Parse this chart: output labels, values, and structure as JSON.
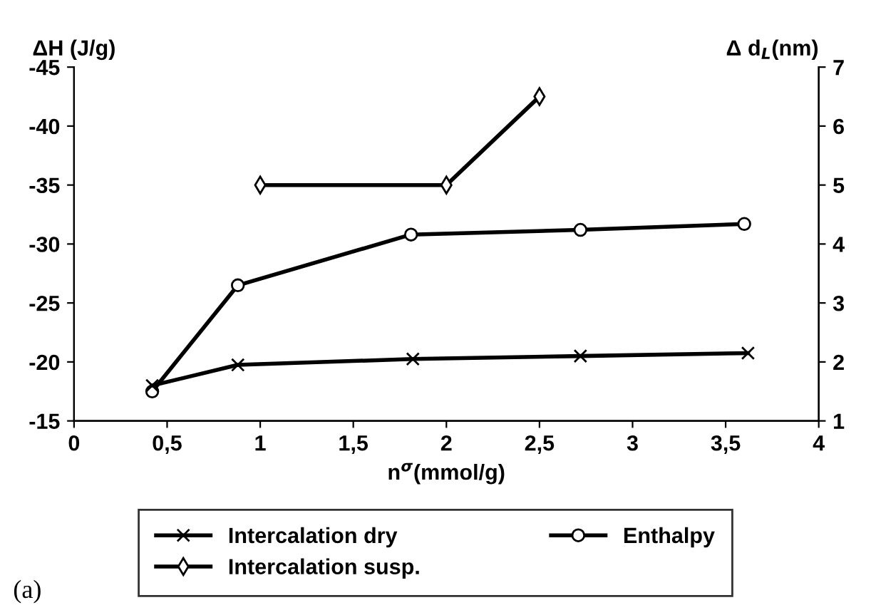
{
  "chart_data": {
    "type": "line",
    "xlabel": "n$^{σ}$(mmol/g)",
    "ylabel": "ΔH (J/g)",
    "y2label": "Δ d$_{L}$(nm)",
    "annotations": [
      "(a)"
    ],
    "xlim": [
      0,
      4
    ],
    "xticks": [
      0,
      {
        "value": 0.5,
        "label": "0,5"
      },
      1,
      {
        "value": 1.5,
        "label": "1,5"
      },
      2,
      {
        "value": 2.5,
        "label": "2,5"
      },
      3,
      {
        "value": 3.5,
        "label": "3,5"
      },
      4
    ],
    "ylim": [
      -15,
      -45
    ],
    "yticks": [
      -15,
      -20,
      -25,
      -30,
      -35,
      -40,
      -45
    ],
    "y2lim": [
      1,
      7
    ],
    "y2ticks": [
      1,
      2,
      3,
      4,
      5,
      6,
      7
    ],
    "legend": "bottom",
    "grid": false,
    "line_style": "solid",
    "series": [
      {
        "name": "Intercalation dry",
        "color": "#000000",
        "marker": "cross",
        "axis": "y2",
        "x": [
          0.42,
          0.88,
          1.82,
          2.72,
          3.62
        ],
        "values": [
          1.6,
          1.95,
          2.05,
          2.1,
          2.15
        ]
      },
      {
        "name": "Intercalation susp.",
        "color": "#000000",
        "marker": "diamond",
        "axis": "y2",
        "x": [
          1,
          2,
          2.5
        ],
        "values": [
          5,
          5,
          6.5
        ]
      },
      {
        "name": "Enthalpy",
        "color": "#000000",
        "marker": "circle",
        "x": [
          0.42,
          0.88,
          1.81,
          2.72,
          3.6
        ],
        "values": [
          -17.5,
          -26.5,
          -30.8,
          -31.2,
          -31.7
        ]
      }
    ]
  }
}
